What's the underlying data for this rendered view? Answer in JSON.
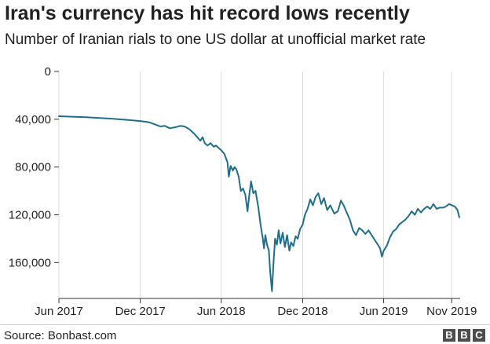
{
  "title": "Iran's currency has hit record lows recently",
  "subtitle": "Number of Iranian rials to one US dollar at unofficial market rate",
  "source": "Source: Bonbast.com",
  "logo": [
    "B",
    "B",
    "C"
  ],
  "colors": {
    "line": "#1f6e8c",
    "grid": "#dddddd",
    "axis": "#333333",
    "logo_bg": "#4d4d4d"
  },
  "chart_data": {
    "type": "line",
    "title": "Iran's currency has hit record lows recently",
    "subtitle": "Number of Iranian rials to one US dollar at unofficial market rate",
    "xlabel": "",
    "ylabel": "",
    "y_inverted": true,
    "ylim": [
      0,
      190000
    ],
    "xlim": [
      "2017-06-01",
      "2019-11-20"
    ],
    "yticks": [
      0,
      40000,
      80000,
      120000,
      160000
    ],
    "ytick_labels": [
      "0",
      "40,000",
      "80,000",
      "120,000",
      "160,000"
    ],
    "xticks": [
      "2017-06-01",
      "2017-12-01",
      "2018-06-01",
      "2018-12-01",
      "2019-06-01",
      "2019-11-01"
    ],
    "xtick_labels": [
      "Jun 2017",
      "Dec 2017",
      "Jun 2018",
      "Dec 2018",
      "Jun 2019",
      "Nov 2019"
    ],
    "grid": {
      "vertical": true,
      "horizontal": false
    },
    "legend": "none",
    "series": [
      {
        "name": "",
        "points": [
          [
            "2017-06-01",
            37500
          ],
          [
            "2017-07-01",
            37900
          ],
          [
            "2017-08-01",
            38300
          ],
          [
            "2017-09-01",
            38900
          ],
          [
            "2017-10-01",
            39600
          ],
          [
            "2017-11-01",
            40500
          ],
          [
            "2017-12-01",
            41500
          ],
          [
            "2017-12-20",
            42500
          ],
          [
            "2018-01-01",
            44000
          ],
          [
            "2018-01-15",
            46000
          ],
          [
            "2018-01-25",
            45500
          ],
          [
            "2018-02-05",
            47500
          ],
          [
            "2018-02-20",
            46500
          ],
          [
            "2018-03-01",
            45500
          ],
          [
            "2018-03-10",
            46000
          ],
          [
            "2018-03-20",
            48000
          ],
          [
            "2018-04-01",
            52000
          ],
          [
            "2018-04-08",
            55000
          ],
          [
            "2018-04-15",
            58000
          ],
          [
            "2018-04-20",
            55000
          ],
          [
            "2018-04-25",
            60000
          ],
          [
            "2018-05-01",
            62000
          ],
          [
            "2018-05-08",
            60000
          ],
          [
            "2018-05-15",
            63000
          ],
          [
            "2018-05-20",
            62000
          ],
          [
            "2018-06-01",
            66000
          ],
          [
            "2018-06-08",
            69000
          ],
          [
            "2018-06-15",
            76000
          ],
          [
            "2018-06-18",
            88000
          ],
          [
            "2018-06-22",
            79000
          ],
          [
            "2018-06-27",
            83000
          ],
          [
            "2018-07-01",
            80000
          ],
          [
            "2018-07-05",
            82000
          ],
          [
            "2018-07-10",
            88000
          ],
          [
            "2018-07-15",
            100000
          ],
          [
            "2018-07-20",
            98000
          ],
          [
            "2018-07-25",
            103000
          ],
          [
            "2018-07-30",
            117000
          ],
          [
            "2018-08-03",
            103000
          ],
          [
            "2018-08-07",
            92000
          ],
          [
            "2018-08-12",
            102000
          ],
          [
            "2018-08-17",
            100000
          ],
          [
            "2018-08-23",
            113000
          ],
          [
            "2018-08-29",
            130000
          ],
          [
            "2018-09-02",
            139000
          ],
          [
            "2018-09-05",
            148000
          ],
          [
            "2018-09-08",
            137000
          ],
          [
            "2018-09-12",
            145000
          ],
          [
            "2018-09-16",
            150000
          ],
          [
            "2018-09-19",
            168000
          ],
          [
            "2018-09-23",
            184000
          ],
          [
            "2018-09-26",
            162000
          ],
          [
            "2018-09-30",
            140000
          ],
          [
            "2018-10-04",
            145000
          ],
          [
            "2018-10-08",
            133000
          ],
          [
            "2018-10-12",
            144000
          ],
          [
            "2018-10-17",
            135000
          ],
          [
            "2018-10-22",
            147000
          ],
          [
            "2018-10-27",
            137000
          ],
          [
            "2018-11-01",
            150000
          ],
          [
            "2018-11-05",
            143000
          ],
          [
            "2018-11-10",
            146000
          ],
          [
            "2018-11-15",
            138000
          ],
          [
            "2018-11-20",
            140000
          ],
          [
            "2018-11-25",
            132000
          ],
          [
            "2018-12-01",
            128000
          ],
          [
            "2018-12-06",
            120000
          ],
          [
            "2018-12-12",
            115000
          ],
          [
            "2018-12-18",
            107000
          ],
          [
            "2018-12-24",
            112000
          ],
          [
            "2018-12-30",
            105000
          ],
          [
            "2019-01-05",
            102000
          ],
          [
            "2019-01-12",
            111000
          ],
          [
            "2019-01-18",
            106000
          ],
          [
            "2019-01-25",
            116000
          ],
          [
            "2019-02-01",
            112000
          ],
          [
            "2019-02-10",
            119000
          ],
          [
            "2019-02-18",
            117000
          ],
          [
            "2019-02-25",
            108000
          ],
          [
            "2019-03-03",
            112000
          ],
          [
            "2019-03-10",
            118000
          ],
          [
            "2019-03-17",
            124000
          ],
          [
            "2019-03-24",
            133000
          ],
          [
            "2019-03-31",
            137000
          ],
          [
            "2019-04-07",
            131000
          ],
          [
            "2019-04-14",
            133000
          ],
          [
            "2019-04-21",
            136000
          ],
          [
            "2019-04-28",
            133000
          ],
          [
            "2019-05-05",
            137000
          ],
          [
            "2019-05-12",
            141000
          ],
          [
            "2019-05-19",
            145000
          ],
          [
            "2019-05-24",
            148000
          ],
          [
            "2019-05-28",
            155000
          ],
          [
            "2019-06-01",
            150000
          ],
          [
            "2019-06-08",
            146000
          ],
          [
            "2019-06-15",
            139000
          ],
          [
            "2019-06-22",
            134000
          ],
          [
            "2019-06-29",
            132000
          ],
          [
            "2019-07-06",
            128000
          ],
          [
            "2019-07-13",
            126000
          ],
          [
            "2019-07-20",
            124000
          ],
          [
            "2019-07-27",
            121000
          ],
          [
            "2019-08-03",
            117000
          ],
          [
            "2019-08-10",
            120000
          ],
          [
            "2019-08-17",
            115000
          ],
          [
            "2019-08-24",
            118000
          ],
          [
            "2019-08-31",
            115000
          ],
          [
            "2019-09-07",
            113000
          ],
          [
            "2019-09-14",
            115000
          ],
          [
            "2019-09-21",
            111000
          ],
          [
            "2019-09-28",
            115000
          ],
          [
            "2019-10-05",
            114000
          ],
          [
            "2019-10-12",
            114000
          ],
          [
            "2019-10-19",
            113000
          ],
          [
            "2019-10-26",
            111000
          ],
          [
            "2019-11-02",
            112000
          ],
          [
            "2019-11-08",
            113000
          ],
          [
            "2019-11-14",
            116000
          ],
          [
            "2019-11-18",
            122000
          ]
        ]
      }
    ]
  }
}
